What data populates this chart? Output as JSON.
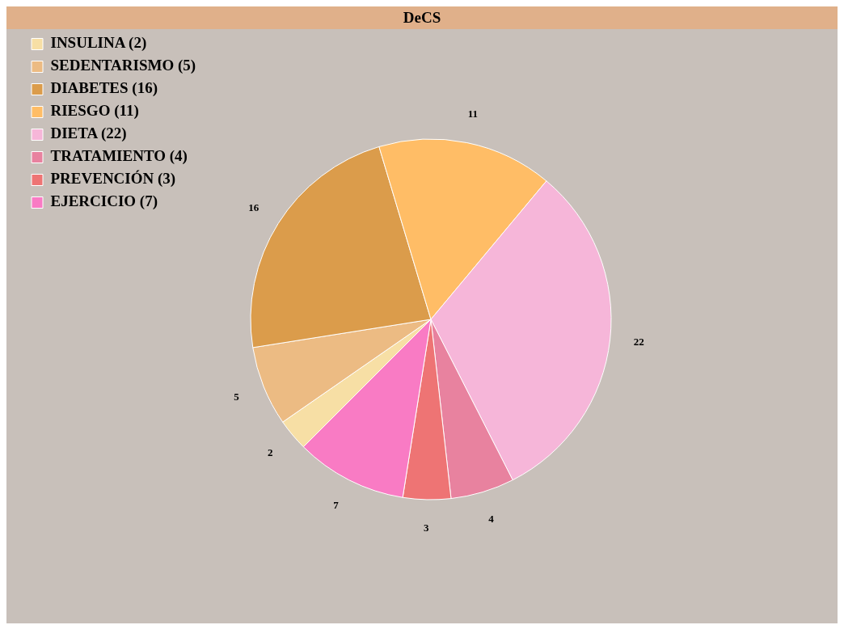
{
  "chart_data": {
    "type": "pie",
    "title": "DeCS",
    "categories": [
      "INSULINA (2)",
      "SEDENTARISMO (5)",
      "DIABETES (16)",
      "RIESGO (11)",
      "DIETA (22)",
      "TRATAMIENTO (4)",
      "PREVENCIÓN (3)",
      "EJERCICIO (7)"
    ],
    "values": [
      2,
      5,
      16,
      11,
      22,
      4,
      3,
      7
    ],
    "colors": [
      "#f7dfa5",
      "#ecbb83",
      "#db9c4b",
      "#ffbd66",
      "#f6b6d9",
      "#e8829f",
      "#ee7474",
      "#f97bc4"
    ],
    "data_labels": true,
    "legend": "top left"
  }
}
